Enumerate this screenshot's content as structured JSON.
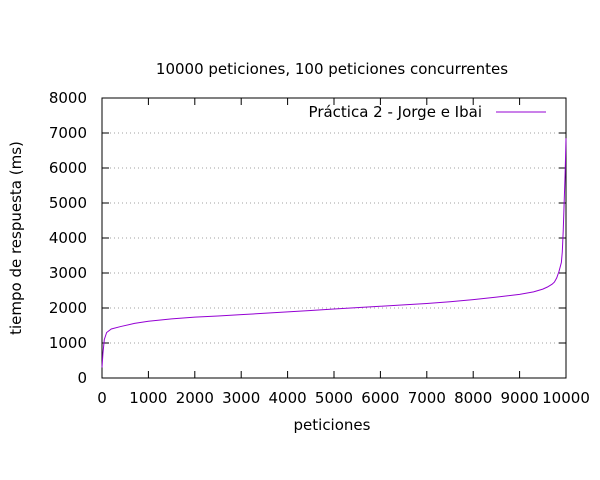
{
  "chart_data": {
    "type": "line",
    "title": "10000 peticiones, 100 peticiones concurrentes",
    "xlabel": "peticiones",
    "ylabel": "tiempo de respuesta (ms)",
    "xlim": [
      0,
      10000
    ],
    "ylim": [
      0,
      8000
    ],
    "xticks": [
      0,
      1000,
      2000,
      3000,
      4000,
      5000,
      6000,
      7000,
      8000,
      9000,
      10000
    ],
    "yticks": [
      0,
      1000,
      2000,
      3000,
      4000,
      5000,
      6000,
      7000,
      8000
    ],
    "grid": "horizontal-dotted",
    "legend_position": "top-right",
    "series": [
      {
        "name": "Práctica 2 - Jorge e Ibai",
        "color": "#9400d3",
        "x": [
          0,
          20,
          50,
          100,
          200,
          400,
          700,
          1000,
          1500,
          2000,
          2500,
          3000,
          3500,
          4000,
          4500,
          5000,
          5500,
          6000,
          6500,
          7000,
          7500,
          8000,
          8500,
          9000,
          9300,
          9500,
          9600,
          9700,
          9750,
          9800,
          9850,
          9900,
          9920,
          9940,
          9960,
          9980,
          9990,
          10000
        ],
        "y": [
          300,
          700,
          1100,
          1300,
          1400,
          1470,
          1560,
          1620,
          1690,
          1740,
          1770,
          1810,
          1850,
          1890,
          1930,
          1970,
          2010,
          2050,
          2090,
          2130,
          2180,
          2240,
          2310,
          2390,
          2460,
          2540,
          2600,
          2680,
          2740,
          2860,
          3050,
          3300,
          3600,
          4200,
          5000,
          5800,
          6300,
          6850
        ]
      }
    ]
  }
}
